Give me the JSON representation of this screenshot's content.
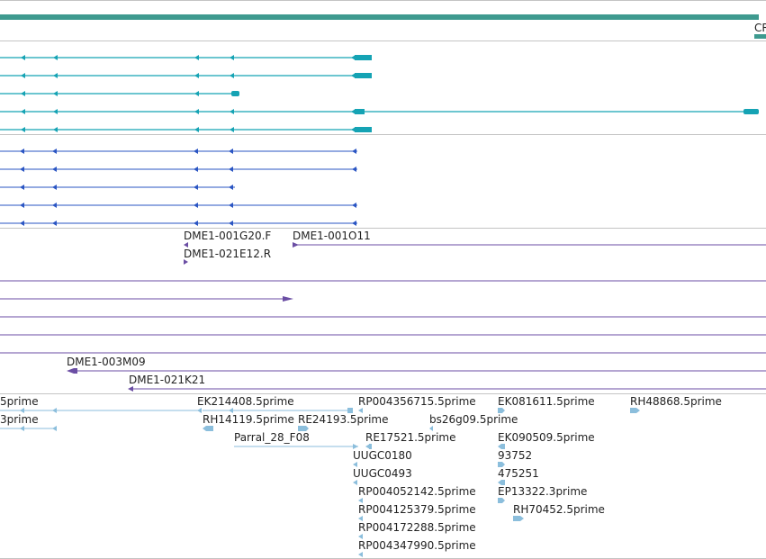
{
  "view": {
    "colors": {
      "background": "#ffffff",
      "separator": "#c4c4c4",
      "chromosome": "#3e9a8f",
      "transcript_teal": "#15a3b4",
      "transcript_blue": "#2a55c3",
      "clone_purple": "#6b4ea4",
      "est_lightblue": "#8bbedc",
      "label_text": "#222222"
    }
  },
  "chromosome": {
    "label": "CR"
  },
  "clones": {
    "labels": [
      {
        "text": "DME1-001G20.F"
      },
      {
        "text": "DME1-001O11"
      },
      {
        "text": "DME1-021E12.R"
      },
      {
        "text": "DME1-003M09"
      },
      {
        "text": "DME1-021K21"
      }
    ]
  },
  "ests": {
    "labels": [
      {
        "text": "5prime"
      },
      {
        "text": "EK214408.5prime"
      },
      {
        "text": "RP004356715.5prime"
      },
      {
        "text": "EK081611.5prime"
      },
      {
        "text": "RH48868.5prime"
      },
      {
        "text": "3prime"
      },
      {
        "text": "RH14119.5prime"
      },
      {
        "text": "RE24193.5prime"
      },
      {
        "text": "bs26g09.5prime"
      },
      {
        "text": "Parral_28_F08"
      },
      {
        "text": "RE17521.5prime"
      },
      {
        "text": "EK090509.5prime"
      },
      {
        "text": "UUGC0180"
      },
      {
        "text": "93752"
      },
      {
        "text": "UUGC0493"
      },
      {
        "text": "475251"
      },
      {
        "text": "RP004052142.5prime"
      },
      {
        "text": "EP13322.3prime"
      },
      {
        "text": "RH70452.5prime"
      },
      {
        "text": "RP004125379.5prime"
      },
      {
        "text": "RP004172288.5prime"
      },
      {
        "text": "RP004347990.5prime"
      }
    ]
  }
}
